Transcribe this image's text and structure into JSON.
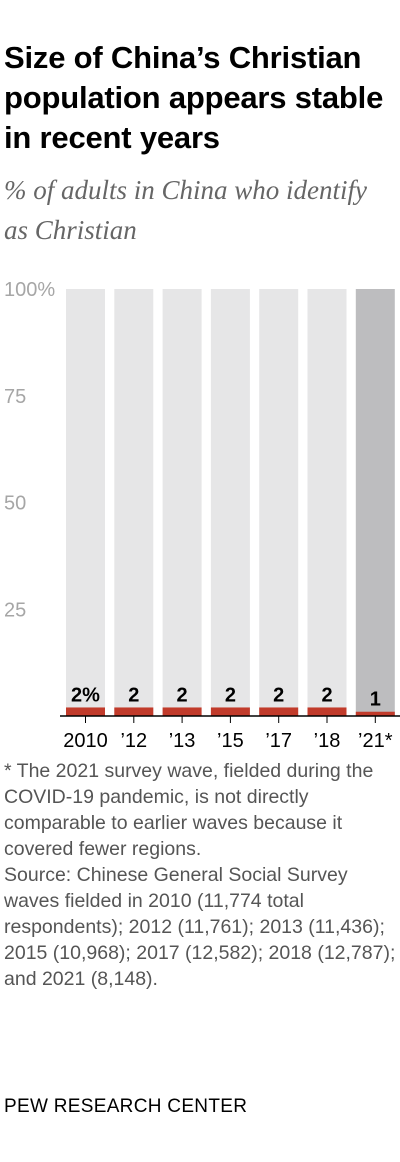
{
  "header": {
    "title": "Size of China’s Christian population appears stable in recent years",
    "subtitle": "% of adults in China who identify as Christian"
  },
  "chart_data": {
    "type": "bar",
    "title": "Size of China’s Christian population appears stable in recent years",
    "subtitle": "% of adults in China who identify as Christian",
    "categories": [
      "2010",
      "’12",
      "’13",
      "’15",
      "’17",
      "’18",
      "’21*"
    ],
    "values": [
      2,
      2,
      2,
      2,
      2,
      2,
      1
    ],
    "value_labels": [
      "2%",
      "2",
      "2",
      "2",
      "2",
      "2",
      "1"
    ],
    "ylim": [
      0,
      100
    ],
    "yticks": [
      25,
      50,
      75,
      100
    ],
    "ytick_labels": [
      "25",
      "50",
      "75",
      "100%"
    ],
    "xlabel": "",
    "ylabel": "",
    "grid": false,
    "highlight_category": "’21*",
    "colors": {
      "bar": "#c13b2b",
      "track": "#e6e6e7",
      "track_highlight": "#bdbdbf",
      "axis": "#000000",
      "tick_label": "#a6a6a6"
    }
  },
  "footer": {
    "note": "* The 2021 survey wave, fielded during the COVID-19 pandemic, is not directly comparable to earlier waves because it covered fewer regions.",
    "source_label": "Source:",
    "source_text": "Chinese General Social Survey waves fielded in 2010 (11,774 total respondents); 2012 (11,761); 2013 (11,436); 2015 (10,968); 2017 (12,582); 2018 (12,787); and 2021 (8,148).",
    "brand": "PEW RESEARCH CENTER"
  }
}
